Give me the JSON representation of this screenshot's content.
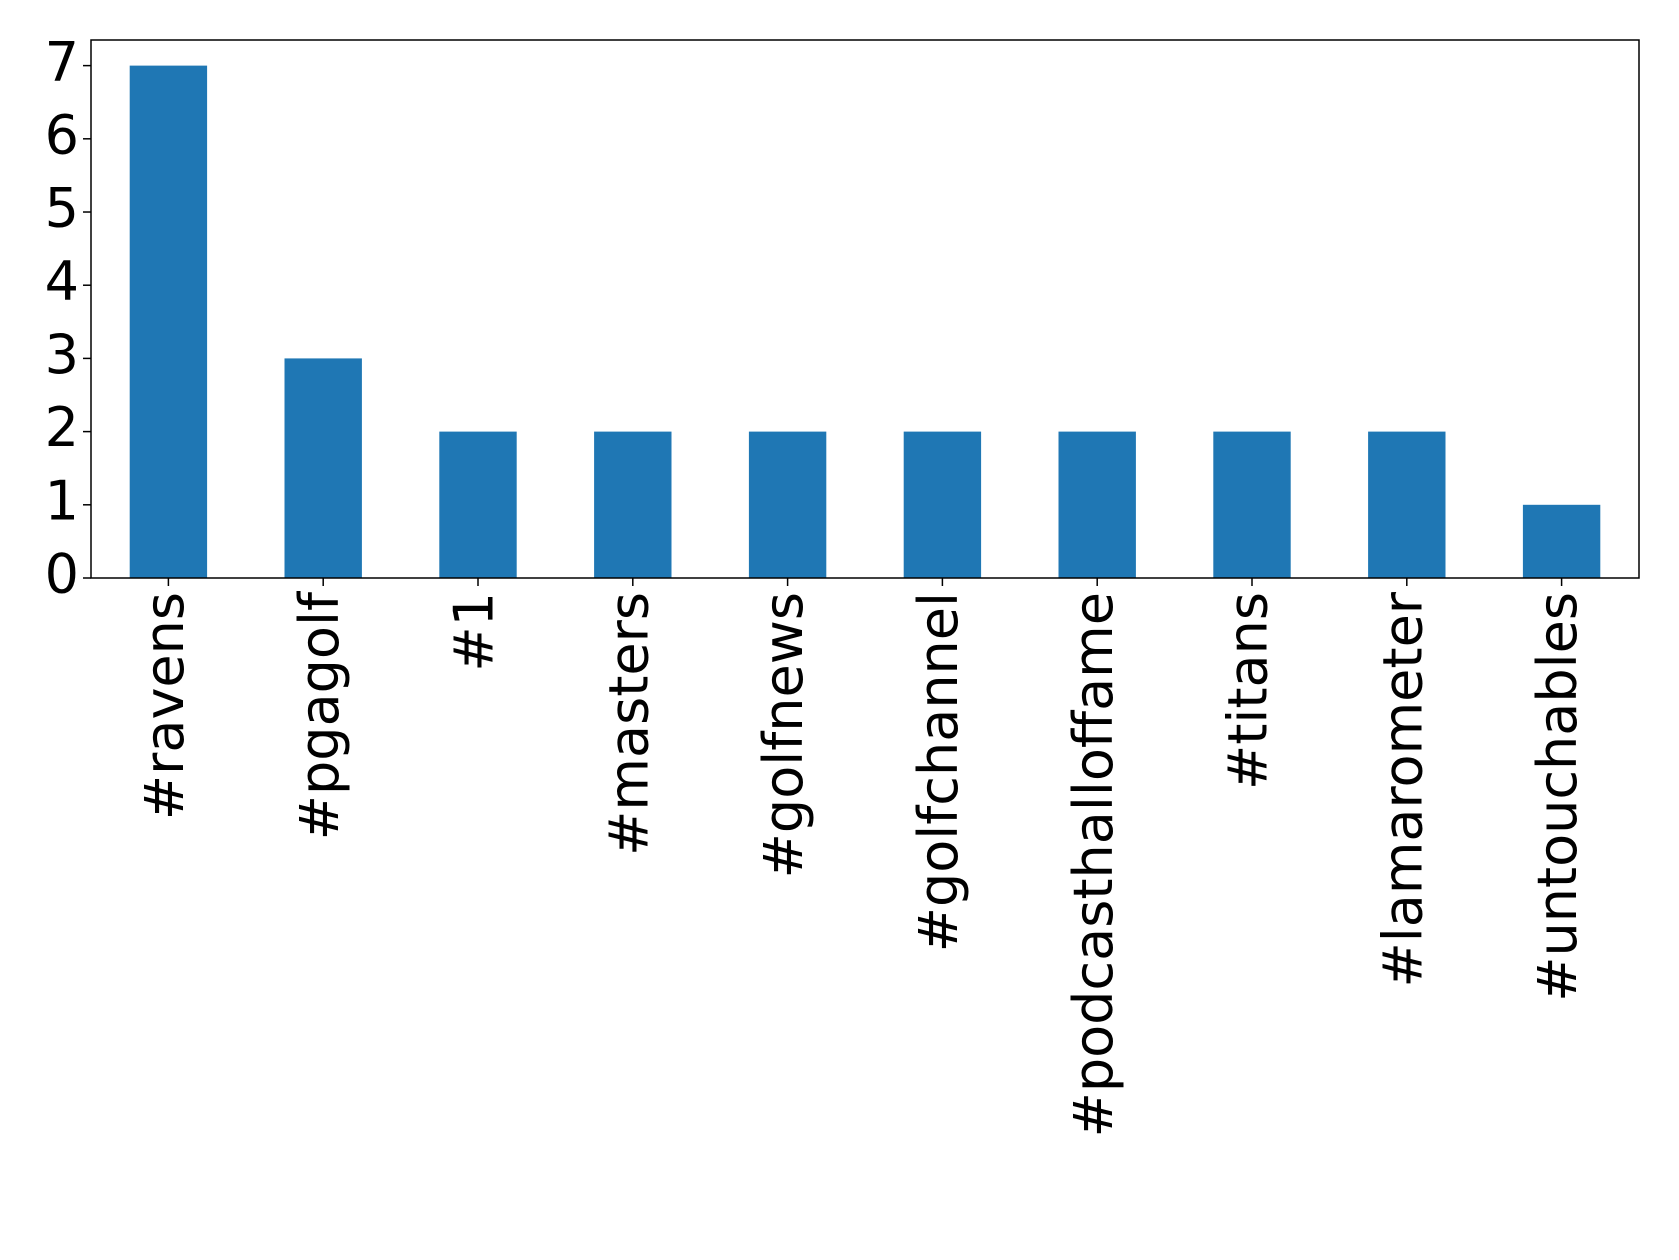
{
  "chart_data": {
    "type": "bar",
    "categories": [
      "#ravens",
      "#pgagolf",
      "#1",
      "#masters",
      "#golfnews",
      "#golfchannel",
      "#podcasthalloffame",
      "#titans",
      "#lamarometer",
      "#untouchables"
    ],
    "values": [
      7,
      3,
      2,
      2,
      2,
      2,
      2,
      2,
      2,
      1
    ],
    "color": "#1f77b4",
    "ylim": [
      0,
      7.35
    ],
    "yticks": [
      0,
      1,
      2,
      3,
      4,
      5,
      6,
      7
    ],
    "grid": false
  }
}
